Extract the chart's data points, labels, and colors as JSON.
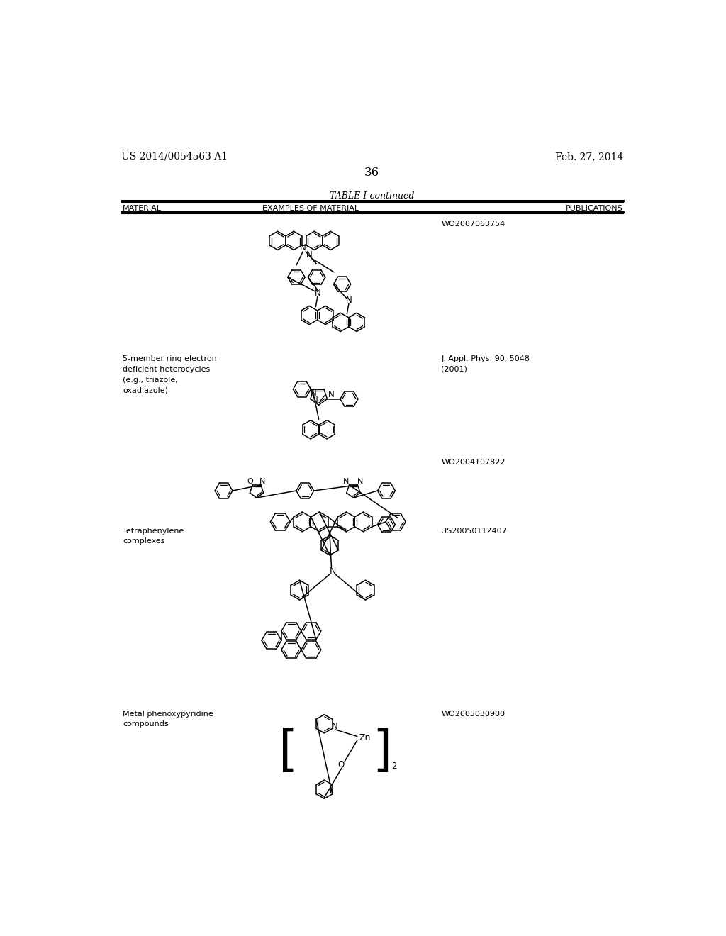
{
  "page_number": "36",
  "patent_number": "US 2014/0054563 A1",
  "patent_date": "Feb. 27, 2014",
  "table_title": "TABLE I-continued",
  "col1_header": "MATERIAL",
  "col2_header": "EXAMPLES OF MATERIAL",
  "col3_header": "PUBLICATIONS",
  "bg_color": "#ffffff",
  "lw": 1.1,
  "r_hex": 18,
  "r_hex_sm": 16
}
